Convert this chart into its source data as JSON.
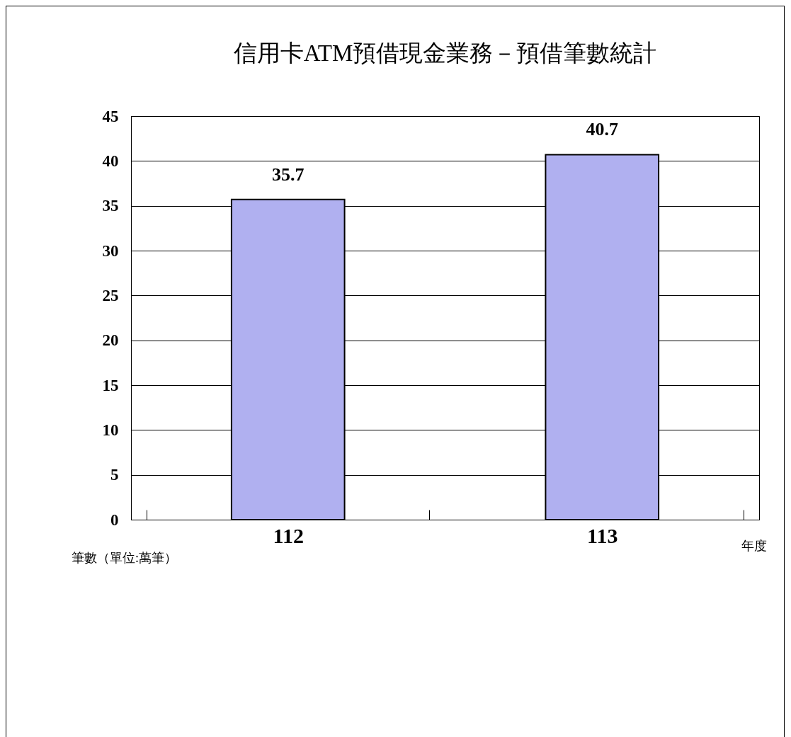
{
  "chart_data": {
    "type": "bar",
    "title": "信用卡ATM預借現金業務－預借筆數統計",
    "xlabel": "年度",
    "ylabel": "筆數（單位:萬筆）",
    "categories": [
      "112",
      "113"
    ],
    "values": [
      35.7,
      40.7
    ],
    "color": "#b0b0f0",
    "ylim": [
      0,
      45
    ],
    "yticks": [
      0,
      5,
      10,
      15,
      20,
      25,
      30,
      35,
      40,
      45
    ],
    "grid": "y",
    "data_labels": true
  }
}
